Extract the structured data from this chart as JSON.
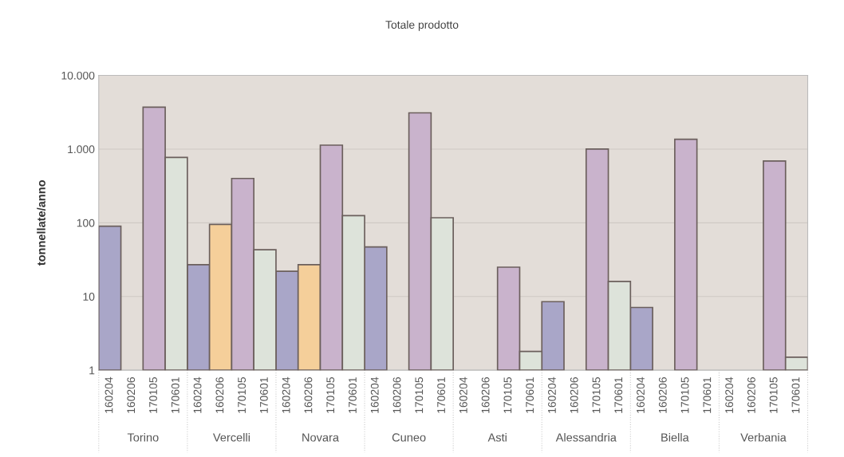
{
  "chart_data": {
    "type": "bar",
    "title": "Totale prodotto",
    "ylabel": "tonnellate/anno",
    "categories": [
      "Torino",
      "Vercelli",
      "Novara",
      "Cuneo",
      "Asti",
      "Alessandria",
      "Biella",
      "Verbania"
    ],
    "series": [
      {
        "name": "160204",
        "color": "#a9a6c8",
        "values": [
          90,
          27,
          22,
          47,
          null,
          8.5,
          7.1,
          null
        ]
      },
      {
        "name": "160206",
        "color": "#f5cf9a",
        "values": [
          null,
          95,
          27,
          null,
          null,
          null,
          null,
          null
        ]
      },
      {
        "name": "170105",
        "color": "#c9b3cc",
        "values": [
          3700,
          400,
          1130,
          3100,
          25,
          1000,
          1360,
          690
        ]
      },
      {
        "name": "170601",
        "color": "#dde3da",
        "values": [
          770,
          43,
          125,
          117,
          1.8,
          16,
          null,
          1.5
        ]
      }
    ],
    "log": true,
    "ylim": [
      1,
      10000
    ],
    "yticks": [
      1,
      10,
      100,
      {
        "value": 1000,
        "label": "1.000"
      },
      {
        "value": 10000,
        "label": "10.000"
      }
    ],
    "grid": "y",
    "legend": false
  }
}
